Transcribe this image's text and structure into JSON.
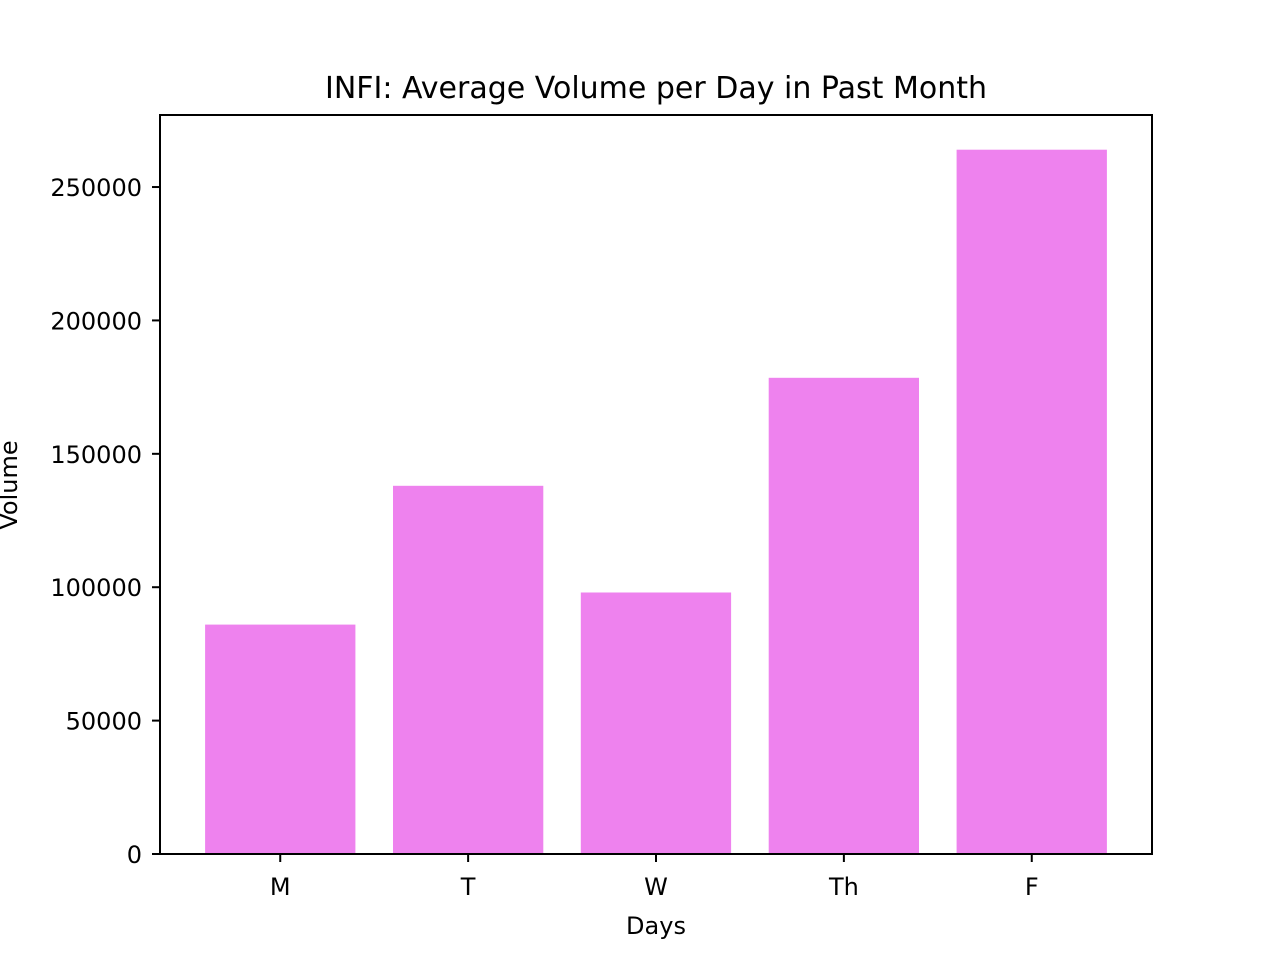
{
  "chart_data": {
    "type": "bar",
    "title": "INFI: Average Volume per Day in Past Month",
    "xlabel": "Days",
    "ylabel": "Volume",
    "categories": [
      "M",
      "T",
      "W",
      "Th",
      "F"
    ],
    "values": [
      86000,
      138000,
      98000,
      178500,
      264000
    ],
    "ylim": [
      0,
      277000
    ],
    "yticks": [
      0,
      50000,
      100000,
      150000,
      200000,
      250000
    ],
    "ytick_labels": [
      "0",
      "50000",
      "100000",
      "150000",
      "200000",
      "250000"
    ],
    "grid": false,
    "legend": "none",
    "bar_color": "#ee82ee"
  }
}
